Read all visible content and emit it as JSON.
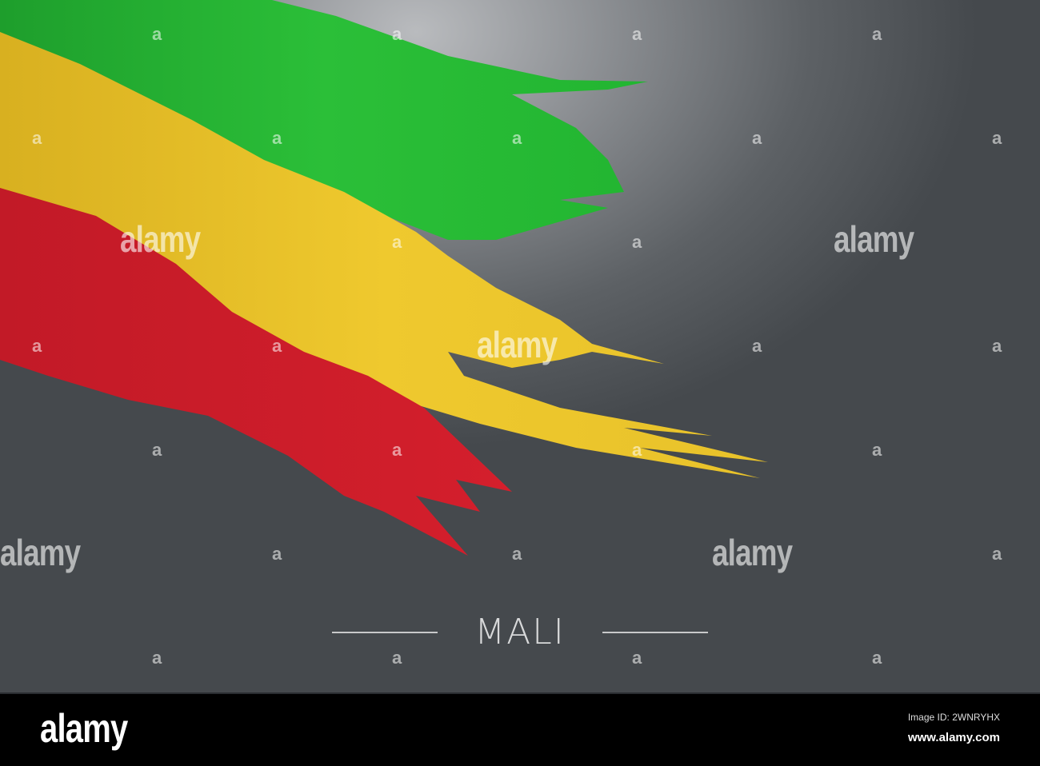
{
  "image": {
    "title": "MALI",
    "flag_colors": {
      "green": "#22b531",
      "yellow": "#ecc52a",
      "red": "#d41f2c"
    },
    "background_color": "#5d6165"
  },
  "watermark": {
    "text": "alamy",
    "small": "a"
  },
  "footer": {
    "logo": "alamy",
    "image_id": "Image ID: 2WNRYHX",
    "website": "www.alamy.com"
  }
}
